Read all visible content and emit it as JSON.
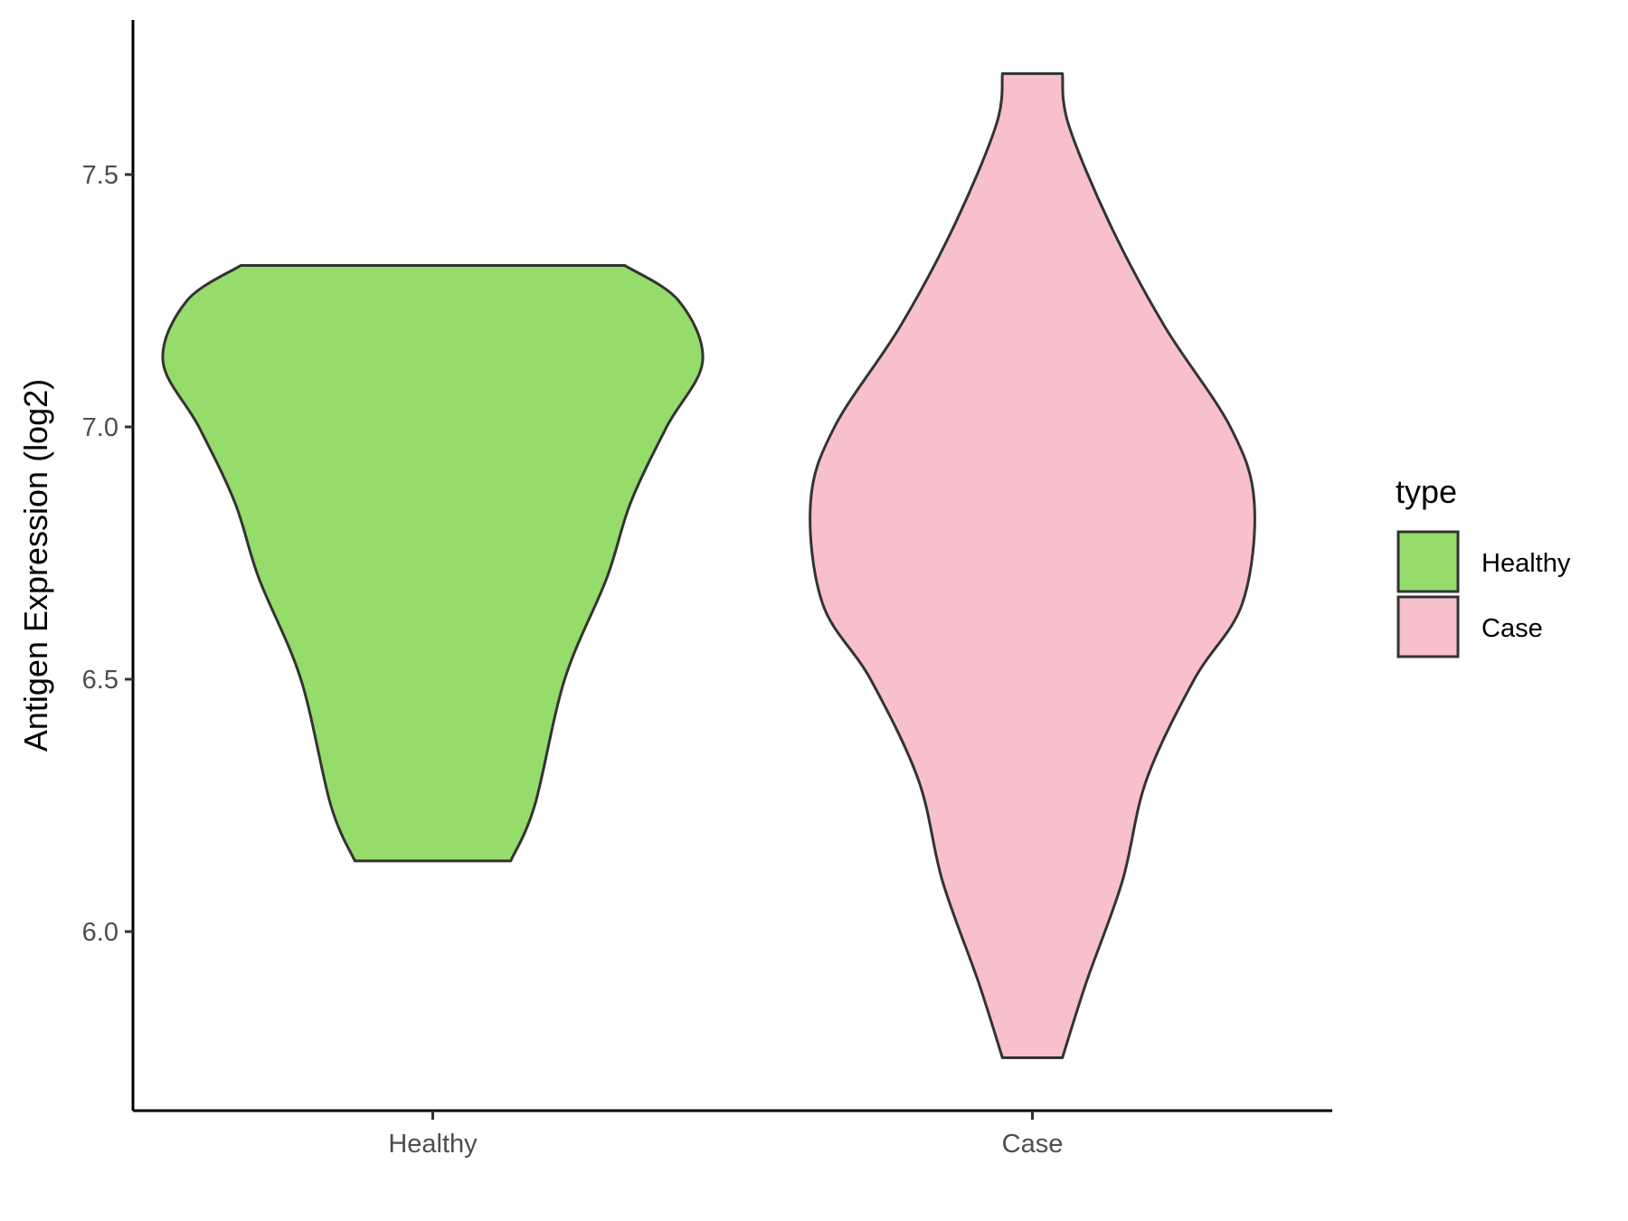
{
  "chart_data": {
    "type": "violin",
    "title": "",
    "xlabel": "",
    "ylabel": "Antigen Expression (log2)",
    "categories": [
      "Healthy",
      "Case"
    ],
    "ylim": [
      5.65,
      7.8
    ],
    "yticks": [
      6.0,
      6.5,
      7.0,
      7.5
    ],
    "ytick_labels": [
      "6.0",
      "6.5",
      "7.0",
      "7.5"
    ],
    "grid": false,
    "legend": {
      "title": "type",
      "position": "right",
      "entries": [
        {
          "label": "Healthy",
          "color": "#95dc6b"
        },
        {
          "label": "Case",
          "color": "#f8c0cb"
        }
      ]
    },
    "series": [
      {
        "category": "Healthy",
        "color": "#95dc6b",
        "range": [
          6.14,
          7.32
        ],
        "density_profile": [
          {
            "y": 6.14,
            "halfwidth": 0.13
          },
          {
            "y": 6.25,
            "halfwidth": 0.17
          },
          {
            "y": 6.5,
            "halfwidth": 0.22
          },
          {
            "y": 6.7,
            "halfwidth": 0.29
          },
          {
            "y": 6.85,
            "halfwidth": 0.33
          },
          {
            "y": 7.0,
            "halfwidth": 0.39
          },
          {
            "y": 7.13,
            "halfwidth": 0.45
          },
          {
            "y": 7.25,
            "halfwidth": 0.41
          },
          {
            "y": 7.32,
            "halfwidth": 0.32
          }
        ]
      },
      {
        "category": "Case",
        "color": "#f8c0cb",
        "range": [
          5.75,
          7.7
        ],
        "density_profile": [
          {
            "y": 5.75,
            "halfwidth": 0.05
          },
          {
            "y": 5.9,
            "halfwidth": 0.09
          },
          {
            "y": 6.1,
            "halfwidth": 0.15
          },
          {
            "y": 6.3,
            "halfwidth": 0.19
          },
          {
            "y": 6.5,
            "halfwidth": 0.27
          },
          {
            "y": 6.65,
            "halfwidth": 0.35
          },
          {
            "y": 6.85,
            "halfwidth": 0.37
          },
          {
            "y": 7.0,
            "halfwidth": 0.33
          },
          {
            "y": 7.2,
            "halfwidth": 0.22
          },
          {
            "y": 7.4,
            "halfwidth": 0.13
          },
          {
            "y": 7.6,
            "halfwidth": 0.06
          },
          {
            "y": 7.7,
            "halfwidth": 0.05
          }
        ]
      }
    ]
  }
}
